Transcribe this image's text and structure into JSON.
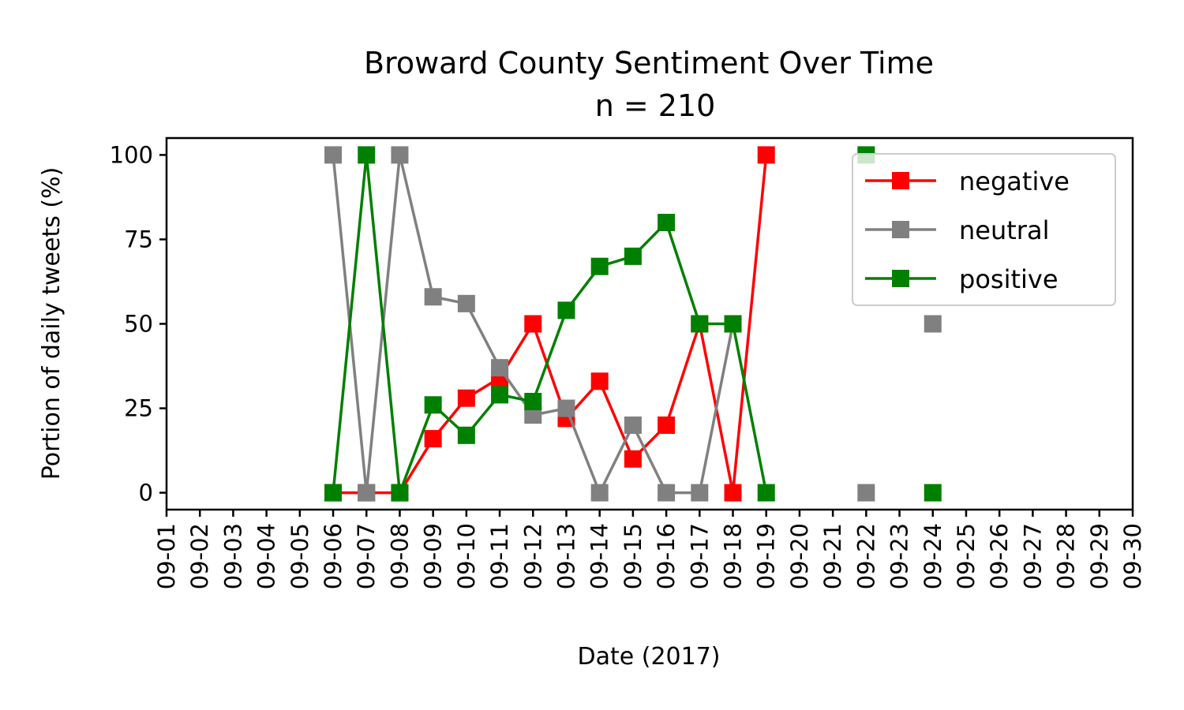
{
  "chart_data": {
    "type": "line",
    "title": "Broward County Sentiment Over Time",
    "subtitle": "n = 210",
    "xlabel": "Date (2017)",
    "ylabel": "Portion of daily tweets (%)",
    "x_ticks": [
      "09-01",
      "09-02",
      "09-03",
      "09-04",
      "09-05",
      "09-06",
      "09-07",
      "09-08",
      "09-09",
      "09-10",
      "09-11",
      "09-12",
      "09-13",
      "09-14",
      "09-15",
      "09-16",
      "09-17",
      "09-18",
      "09-19",
      "09-20",
      "09-21",
      "09-22",
      "09-23",
      "09-24",
      "09-25",
      "09-26",
      "09-27",
      "09-28",
      "09-29",
      "09-30"
    ],
    "xlim": [
      "09-01",
      "09-30"
    ],
    "y_ticks": [
      0,
      25,
      50,
      75,
      100
    ],
    "ylim": [
      -5,
      105
    ],
    "grid": false,
    "legend_position": "upper right",
    "series": [
      {
        "name": "negative",
        "color": "#ff0000",
        "marker": "square",
        "points": [
          {
            "x": "09-06",
            "y": 0
          },
          {
            "x": "09-07",
            "y": 0
          },
          {
            "x": "09-08",
            "y": 0
          },
          {
            "x": "09-09",
            "y": 16
          },
          {
            "x": "09-10",
            "y": 28
          },
          {
            "x": "09-11",
            "y": 34
          },
          {
            "x": "09-12",
            "y": 50
          },
          {
            "x": "09-13",
            "y": 22
          },
          {
            "x": "09-14",
            "y": 33
          },
          {
            "x": "09-15",
            "y": 10
          },
          {
            "x": "09-16",
            "y": 20
          },
          {
            "x": "09-17",
            "y": 50
          },
          {
            "x": "09-18",
            "y": 0
          },
          {
            "x": "09-19",
            "y": 100
          }
        ]
      },
      {
        "name": "neutral",
        "color": "#808080",
        "marker": "square",
        "points": [
          {
            "x": "09-06",
            "y": 100
          },
          {
            "x": "09-07",
            "y": 0
          },
          {
            "x": "09-08",
            "y": 100
          },
          {
            "x": "09-09",
            "y": 58
          },
          {
            "x": "09-10",
            "y": 56
          },
          {
            "x": "09-11",
            "y": 37
          },
          {
            "x": "09-12",
            "y": 23
          },
          {
            "x": "09-13",
            "y": 25
          },
          {
            "x": "09-14",
            "y": 0
          },
          {
            "x": "09-15",
            "y": 20
          },
          {
            "x": "09-16",
            "y": 0
          },
          {
            "x": "09-17",
            "y": 0
          },
          {
            "x": "09-18",
            "y": 50
          }
        ],
        "isolated_points": [
          {
            "x": "09-22",
            "y": 0
          },
          {
            "x": "09-24",
            "y": 50
          }
        ]
      },
      {
        "name": "positive",
        "color": "#008000",
        "marker": "square",
        "points": [
          {
            "x": "09-06",
            "y": 0
          },
          {
            "x": "09-07",
            "y": 100
          },
          {
            "x": "09-08",
            "y": 0
          },
          {
            "x": "09-09",
            "y": 26
          },
          {
            "x": "09-10",
            "y": 17
          },
          {
            "x": "09-11",
            "y": 29
          },
          {
            "x": "09-12",
            "y": 27
          },
          {
            "x": "09-13",
            "y": 54
          },
          {
            "x": "09-14",
            "y": 67
          },
          {
            "x": "09-15",
            "y": 70
          },
          {
            "x": "09-16",
            "y": 80
          },
          {
            "x": "09-17",
            "y": 50
          },
          {
            "x": "09-18",
            "y": 50
          },
          {
            "x": "09-19",
            "y": 0
          }
        ],
        "isolated_points": [
          {
            "x": "09-22",
            "y": 100
          },
          {
            "x": "09-24",
            "y": 0
          }
        ]
      }
    ]
  }
}
